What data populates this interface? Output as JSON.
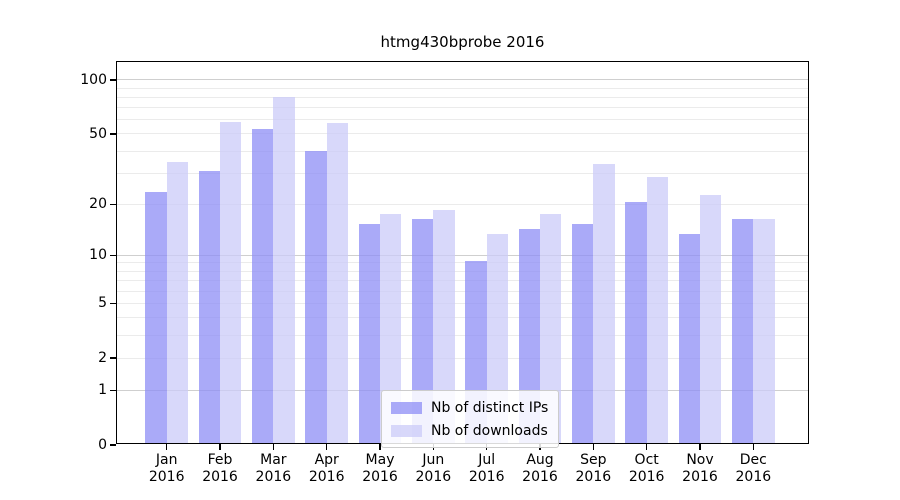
{
  "title": "htmg430bprobe 2016",
  "chart_data": {
    "type": "bar",
    "title": "htmg430bprobe 2016",
    "categories": [
      "Jan 2016",
      "Feb 2016",
      "Mar 2016",
      "Apr 2016",
      "May 2016",
      "Jun 2016",
      "Jul 2016",
      "Aug 2016",
      "Sep 2016",
      "Oct 2016",
      "Nov 2016",
      "Dec 2016"
    ],
    "series": [
      {
        "name": "Nb of distinct IPs",
        "color": "#8e8ef6",
        "alpha": 0.75,
        "values": [
          23,
          30,
          52,
          39,
          15,
          16,
          9,
          14,
          15,
          20,
          13,
          16
        ]
      },
      {
        "name": "Nb of downloads",
        "color": "#cbcbf8",
        "alpha": 0.75,
        "values": [
          34,
          57,
          78,
          56,
          17,
          18,
          13,
          17,
          33,
          28,
          22,
          16
        ]
      }
    ],
    "xlabel": "",
    "ylabel": "",
    "yscale": "log1p",
    "ylim": [
      0,
      126
    ],
    "yticks": [
      0,
      1,
      2,
      5,
      10,
      20,
      50,
      100
    ],
    "grid": true,
    "legend_position": "lower center",
    "layout": {
      "grid_minor_color": "#ebebeb",
      "grid_major_color": "#cfcfcf",
      "axis_color": "#000000",
      "background_color": "#ffffff"
    }
  }
}
